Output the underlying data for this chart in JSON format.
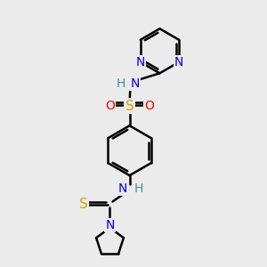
{
  "background_color": "#ebebeb",
  "atom_colors": {
    "C": "#000000",
    "N": "#0000ff",
    "O": "#ff0000",
    "S_sulfonyl": "#ccaa00",
    "S_thio": "#ccaa00",
    "H": "#4a9090"
  },
  "bond_color": "#000000",
  "bond_width": 1.8,
  "font_size_atom": 10,
  "font_size_H": 9,
  "figsize": [
    3.0,
    3.0
  ],
  "dpi": 100
}
